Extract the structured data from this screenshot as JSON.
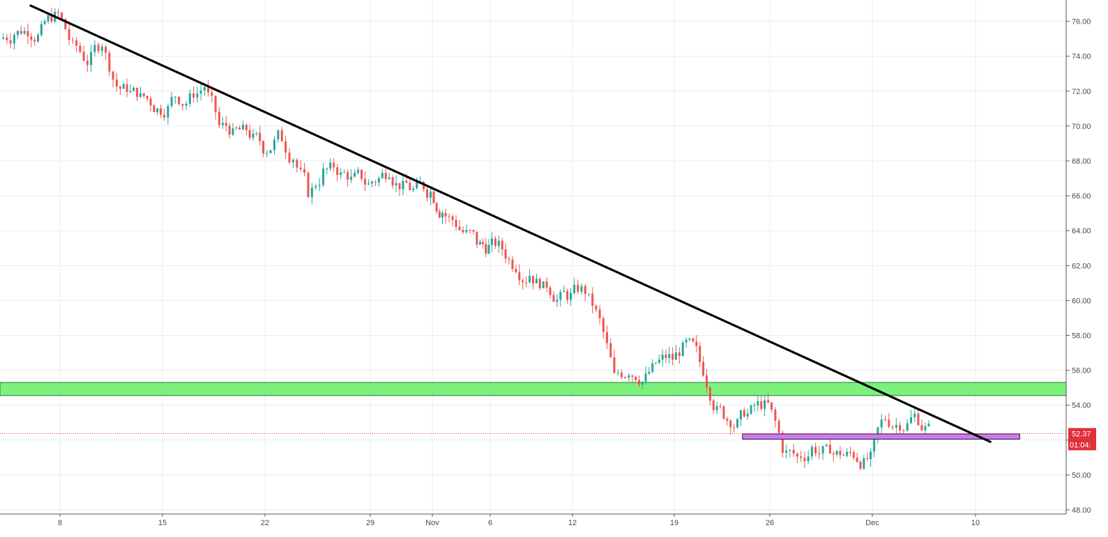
{
  "chart_data": {
    "type": "candlestick",
    "title": "",
    "xlabel": "",
    "ylabel": "",
    "ylim": [
      48,
      77
    ],
    "grid": true,
    "x_ticks": [
      "8",
      "15",
      "22",
      "29",
      "Nov",
      "6",
      "12",
      "19",
      "26",
      "Dec",
      "10"
    ],
    "y_ticks": [
      "48.00",
      "50.00",
      "52.00",
      "54.00",
      "56.00",
      "58.00",
      "60.00",
      "62.00",
      "64.00",
      "66.00",
      "68.00",
      "70.00",
      "72.00",
      "74.00",
      "76.00"
    ],
    "close_trend": [
      [
        "Oct 4",
        75.3
      ],
      [
        "Oct 5",
        76.4
      ],
      [
        "Oct 8",
        74.5
      ],
      [
        "Oct 9",
        73.7
      ],
      [
        "Oct 10",
        74.8
      ],
      [
        "Oct 11",
        72.3
      ],
      [
        "Oct 12",
        71.0
      ],
      [
        "Oct 15",
        71.8
      ],
      [
        "Oct 16",
        71.5
      ],
      [
        "Oct 17",
        72.3
      ],
      [
        "Oct 18",
        70.0
      ],
      [
        "Oct 19",
        68.8
      ],
      [
        "Oct 22",
        69.4
      ],
      [
        "Oct 23",
        68.2
      ],
      [
        "Oct 24",
        66.3
      ],
      [
        "Oct 25",
        67.3
      ],
      [
        "Oct 26",
        66.6
      ],
      [
        "Oct 29",
        67.5
      ],
      [
        "Oct 30",
        66.5
      ],
      [
        "Oct 31",
        66.2
      ],
      [
        "Nov 1",
        65.1
      ],
      [
        "Nov 2",
        63.4
      ],
      [
        "Nov 5",
        63.0
      ],
      [
        "Nov 6",
        63.0
      ],
      [
        "Nov 7",
        62.0
      ],
      [
        "Nov 8",
        61.5
      ],
      [
        "Nov 9",
        60.2
      ],
      [
        "Nov 12",
        60.6
      ],
      [
        "Nov 13",
        58.8
      ],
      [
        "Nov 14",
        55.6
      ],
      [
        "Nov 15",
        56.0
      ],
      [
        "Nov 16",
        56.7
      ],
      [
        "Nov 19",
        57.5
      ],
      [
        "Nov 20",
        56.5
      ],
      [
        "Nov 21",
        53.2
      ],
      [
        "Nov 23",
        54.0
      ],
      [
        "Nov 26",
        51.6
      ],
      [
        "Nov 27",
        51.0
      ],
      [
        "Nov 28",
        51.5
      ],
      [
        "Nov 29",
        51.3
      ],
      [
        "Nov 30",
        50.9
      ],
      [
        "Dec 3",
        53.3
      ],
      [
        "Dec 4",
        53.0
      ],
      [
        "Dec 5",
        53.4
      ],
      [
        "Dec 6",
        52.6
      ]
    ],
    "last_price": "52.37",
    "countdown": "01:04:",
    "annotations": {
      "trendline": {
        "from": [
          "Oct 6",
          76.9
        ],
        "to": [
          "Dec 11",
          51.9
        ],
        "color": "#000000"
      },
      "resistance_zone": {
        "low": 54.55,
        "high": 55.3,
        "color": "#7cf27c"
      },
      "support_zone": {
        "low": 52.05,
        "high": 52.35,
        "from": "Nov 24",
        "to": "Dec 13",
        "color": "#c87ee8"
      }
    },
    "colors": {
      "up": "#26a69a",
      "down": "#ef5350",
      "grid": "#e6ecf2",
      "price_line": "#e0303a"
    }
  }
}
